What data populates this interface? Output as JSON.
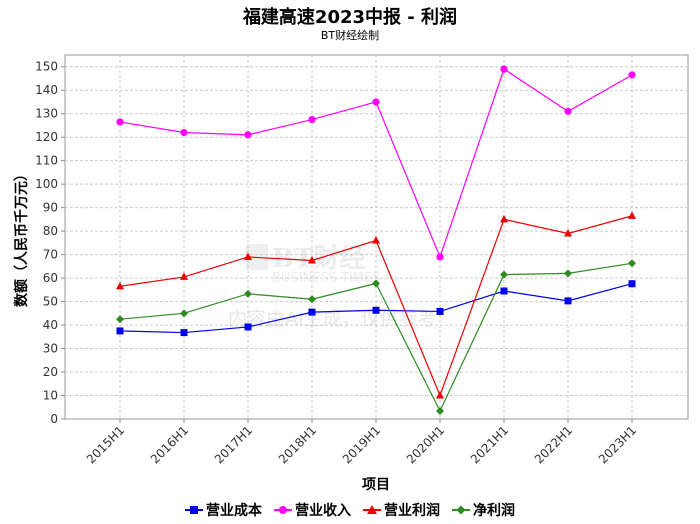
{
  "chart_data": {
    "type": "line",
    "title": "福建高速2023中报 - 利润",
    "subtitle": "BT财经绘制",
    "xlabel": "项目",
    "ylabel": "数额（人民币千万元）",
    "ylim": [
      0,
      155
    ],
    "yticks": [
      0,
      10,
      20,
      30,
      40,
      50,
      60,
      70,
      80,
      90,
      100,
      110,
      120,
      130,
      140,
      150
    ],
    "categories": [
      "2015H1",
      "2016H1",
      "2017H1",
      "2018H1",
      "2019H1",
      "2020H1",
      "2021H1",
      "2022H1",
      "2023H1"
    ],
    "grid": true,
    "legend_position": "bottom",
    "series": [
      {
        "name": "营业成本",
        "color": "#0000ee",
        "marker": "square",
        "values": [
          37.5,
          36.8,
          39.2,
          45.5,
          46.3,
          45.8,
          54.5,
          50.3,
          57.6
        ]
      },
      {
        "name": "营业收入",
        "color": "#ff00ff",
        "marker": "circle",
        "values": [
          126.5,
          122.0,
          121.0,
          127.5,
          135.0,
          69.0,
          149.0,
          131.0,
          146.5
        ]
      },
      {
        "name": "营业利润",
        "color": "#ee0000",
        "marker": "triangle",
        "values": [
          56.5,
          60.5,
          69.0,
          67.5,
          76.0,
          10.0,
          85.0,
          79.0,
          86.5
        ]
      },
      {
        "name": "净利润",
        "color": "#2e8b22",
        "marker": "diamond",
        "values": [
          42.5,
          45.0,
          53.3,
          51.0,
          57.7,
          3.4,
          61.5,
          62.0,
          66.3
        ]
      }
    ]
  },
  "watermark": {
    "brand": "BT财经",
    "brand_en": "BUSINESS TIMES",
    "notice": "内容由AI生成，仅供参考"
  }
}
